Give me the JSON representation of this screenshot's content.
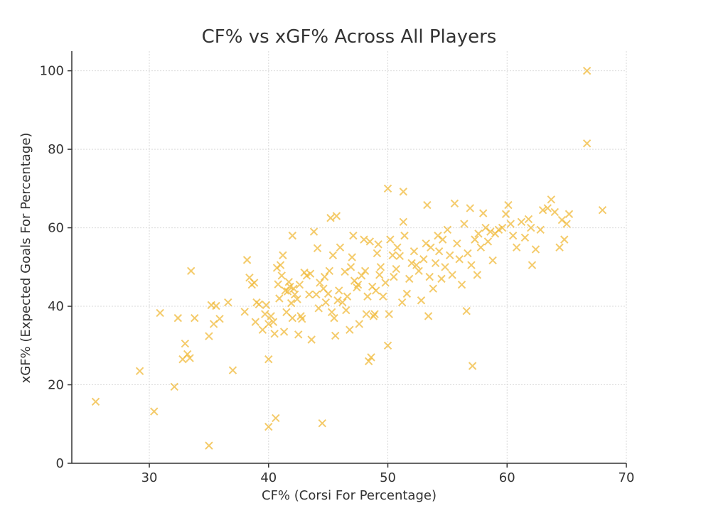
{
  "chart_data": {
    "type": "scatter",
    "title": "CF% vs xGF% Across All Players",
    "xlabel": "CF% (Corsi For Percentage)",
    "ylabel": "xGF% (Expected Goals For Percentage)",
    "xlim": [
      23.5,
      70
    ],
    "ylim": [
      0,
      105
    ],
    "xticks": [
      30,
      40,
      50,
      60,
      70
    ],
    "yticks": [
      0,
      20,
      40,
      60,
      80,
      100
    ],
    "grid": true,
    "marker": "x",
    "color": "#f0b93a",
    "series": [
      {
        "points": [
          [
            25.5,
            15.7
          ],
          [
            29.2,
            23.5
          ],
          [
            30.4,
            13.2
          ],
          [
            30.9,
            38.3
          ],
          [
            32.1,
            19.5
          ],
          [
            32.4,
            37.0
          ],
          [
            32.8,
            26.5
          ],
          [
            33.0,
            30.5
          ],
          [
            33.2,
            27.8
          ],
          [
            33.4,
            26.8
          ],
          [
            33.5,
            49.0
          ],
          [
            33.8,
            37.0
          ],
          [
            35.0,
            4.5
          ],
          [
            35.0,
            32.4
          ],
          [
            35.2,
            40.3
          ],
          [
            35.4,
            35.5
          ],
          [
            35.6,
            40.1
          ],
          [
            35.9,
            36.8
          ],
          [
            36.6,
            41.0
          ],
          [
            37.0,
            23.7
          ],
          [
            38.0,
            38.6
          ],
          [
            38.2,
            51.8
          ],
          [
            38.4,
            47.3
          ],
          [
            38.6,
            45.5
          ],
          [
            38.8,
            46.0
          ],
          [
            38.9,
            36.0
          ],
          [
            39.0,
            41.0
          ],
          [
            39.2,
            40.5
          ],
          [
            39.5,
            34.0
          ],
          [
            39.7,
            38.0
          ],
          [
            39.8,
            40.3
          ],
          [
            40.0,
            35.5
          ],
          [
            40.0,
            26.5
          ],
          [
            40.0,
            9.3
          ],
          [
            40.2,
            37.5
          ],
          [
            40.4,
            36.0
          ],
          [
            40.5,
            33.0
          ],
          [
            40.6,
            11.5
          ],
          [
            40.7,
            49.8
          ],
          [
            40.8,
            45.6
          ],
          [
            40.9,
            42.0
          ],
          [
            41.0,
            50.5
          ],
          [
            41.1,
            47.8
          ],
          [
            41.2,
            53.0
          ],
          [
            41.3,
            33.5
          ],
          [
            41.4,
            44.0
          ],
          [
            41.5,
            38.5
          ],
          [
            41.6,
            43.8
          ],
          [
            41.7,
            46.2
          ],
          [
            41.8,
            45.0
          ],
          [
            41.9,
            40.8
          ],
          [
            42.0,
            37.0
          ],
          [
            42.0,
            58.0
          ],
          [
            42.1,
            44.5
          ],
          [
            42.2,
            43.0
          ],
          [
            42.4,
            41.8
          ],
          [
            42.5,
            32.8
          ],
          [
            42.6,
            45.5
          ],
          [
            42.7,
            37.5
          ],
          [
            42.8,
            36.8
          ],
          [
            43.0,
            48.6
          ],
          [
            43.2,
            47.8
          ],
          [
            43.4,
            43.0
          ],
          [
            43.5,
            48.3
          ],
          [
            43.6,
            31.5
          ],
          [
            43.8,
            59.0
          ],
          [
            44.0,
            43.0
          ],
          [
            44.1,
            54.8
          ],
          [
            44.2,
            39.5
          ],
          [
            44.3,
            46.0
          ],
          [
            44.5,
            10.2
          ],
          [
            44.6,
            44.5
          ],
          [
            44.7,
            47.5
          ],
          [
            44.8,
            41.0
          ],
          [
            45.0,
            43.2
          ],
          [
            45.1,
            49.0
          ],
          [
            45.2,
            62.5
          ],
          [
            45.3,
            38.5
          ],
          [
            45.4,
            53.0
          ],
          [
            45.5,
            37.0
          ],
          [
            45.6,
            32.5
          ],
          [
            45.7,
            63.0
          ],
          [
            45.8,
            41.5
          ],
          [
            45.9,
            44.0
          ],
          [
            46.0,
            55.0
          ],
          [
            46.2,
            41.0
          ],
          [
            46.4,
            48.8
          ],
          [
            46.5,
            39.0
          ],
          [
            46.6,
            42.5
          ],
          [
            46.8,
            34.0
          ],
          [
            46.9,
            50.0
          ],
          [
            47.0,
            52.5
          ],
          [
            47.1,
            58.0
          ],
          [
            47.2,
            46.5
          ],
          [
            47.4,
            44.8
          ],
          [
            47.5,
            45.5
          ],
          [
            47.6,
            35.5
          ],
          [
            47.8,
            47.8
          ],
          [
            48.0,
            57.0
          ],
          [
            48.1,
            49.0
          ],
          [
            48.2,
            38.0
          ],
          [
            48.3,
            42.5
          ],
          [
            48.4,
            26.0
          ],
          [
            48.5,
            56.5
          ],
          [
            48.6,
            27.0
          ],
          [
            48.7,
            45.0
          ],
          [
            48.8,
            37.5
          ],
          [
            48.9,
            38.0
          ],
          [
            49.0,
            44.0
          ],
          [
            49.1,
            53.5
          ],
          [
            49.2,
            55.8
          ],
          [
            49.3,
            48.0
          ],
          [
            49.4,
            50.0
          ],
          [
            49.6,
            42.5
          ],
          [
            49.8,
            46.0
          ],
          [
            50.0,
            70.0
          ],
          [
            50.0,
            30.0
          ],
          [
            50.1,
            38.0
          ],
          [
            50.2,
            57.0
          ],
          [
            50.4,
            53.0
          ],
          [
            50.5,
            47.5
          ],
          [
            50.7,
            49.5
          ],
          [
            50.8,
            55.0
          ],
          [
            51.0,
            52.8
          ],
          [
            51.2,
            41.0
          ],
          [
            51.3,
            69.2
          ],
          [
            51.3,
            61.5
          ],
          [
            51.4,
            58.0
          ],
          [
            51.6,
            43.2
          ],
          [
            51.8,
            47.0
          ],
          [
            52.0,
            51.0
          ],
          [
            52.2,
            54.0
          ],
          [
            52.4,
            50.5
          ],
          [
            52.6,
            49.0
          ],
          [
            52.8,
            41.5
          ],
          [
            53.0,
            52.0
          ],
          [
            53.2,
            56.0
          ],
          [
            53.3,
            65.8
          ],
          [
            53.4,
            37.5
          ],
          [
            53.5,
            47.5
          ],
          [
            53.6,
            55.0
          ],
          [
            53.8,
            44.5
          ],
          [
            54.0,
            51.0
          ],
          [
            54.2,
            58.0
          ],
          [
            54.3,
            54.0
          ],
          [
            54.5,
            47.0
          ],
          [
            54.6,
            57.0
          ],
          [
            54.8,
            50.0
          ],
          [
            55.0,
            59.5
          ],
          [
            55.2,
            53.0
          ],
          [
            55.4,
            48.0
          ],
          [
            55.6,
            66.2
          ],
          [
            55.8,
            56.0
          ],
          [
            56.0,
            52.0
          ],
          [
            56.2,
            45.5
          ],
          [
            56.4,
            61.0
          ],
          [
            56.6,
            38.8
          ],
          [
            56.7,
            53.5
          ],
          [
            56.9,
            65.0
          ],
          [
            57.0,
            50.5
          ],
          [
            57.1,
            24.8
          ],
          [
            57.3,
            57.0
          ],
          [
            57.5,
            48.0
          ],
          [
            57.6,
            58.5
          ],
          [
            57.8,
            55.0
          ],
          [
            58.0,
            63.7
          ],
          [
            58.2,
            60.0
          ],
          [
            58.4,
            56.5
          ],
          [
            58.6,
            59.0
          ],
          [
            58.8,
            51.7
          ],
          [
            59.0,
            58.5
          ],
          [
            59.3,
            59.5
          ],
          [
            59.6,
            60.0
          ],
          [
            59.9,
            63.5
          ],
          [
            60.1,
            65.8
          ],
          [
            60.3,
            61.0
          ],
          [
            60.5,
            58.0
          ],
          [
            60.8,
            55.0
          ],
          [
            61.2,
            61.5
          ],
          [
            61.5,
            57.5
          ],
          [
            61.8,
            62.2
          ],
          [
            62.0,
            60.0
          ],
          [
            62.1,
            50.5
          ],
          [
            62.4,
            54.5
          ],
          [
            62.8,
            59.5
          ],
          [
            63.0,
            64.5
          ],
          [
            63.4,
            65.0
          ],
          [
            63.7,
            67.2
          ],
          [
            64.0,
            64.0
          ],
          [
            64.4,
            55.0
          ],
          [
            64.6,
            62.0
          ],
          [
            64.8,
            57.0
          ],
          [
            65.0,
            61.0
          ],
          [
            65.2,
            63.5
          ],
          [
            66.7,
            100.0
          ],
          [
            66.7,
            81.5
          ],
          [
            68.0,
            64.5
          ]
        ]
      }
    ]
  }
}
